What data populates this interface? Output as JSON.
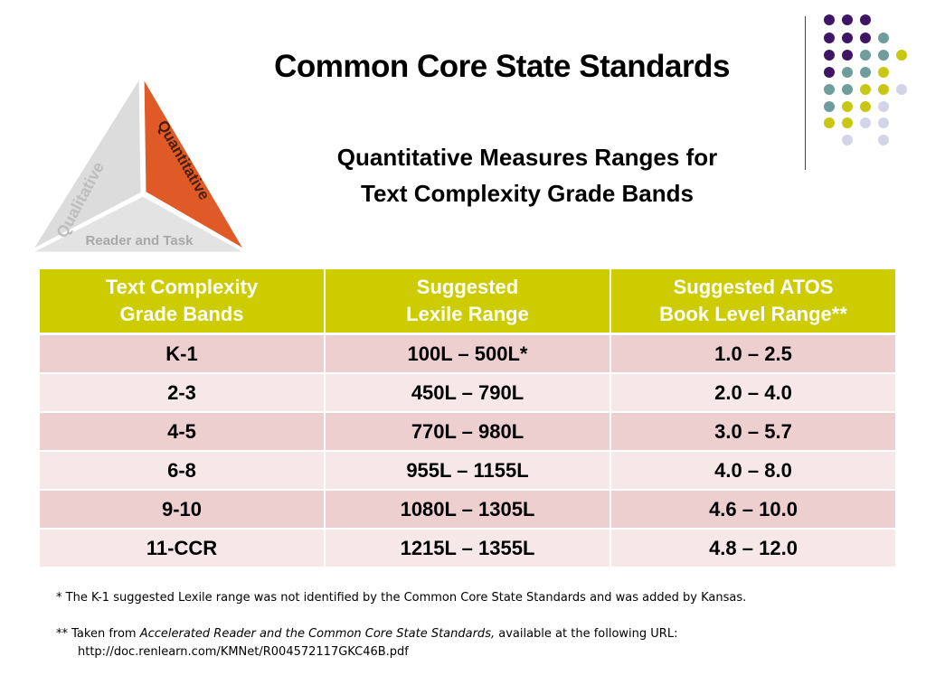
{
  "slide": {
    "title": "Common Core State Standards",
    "subtitle_line1": "Quantitative Measures Ranges for",
    "subtitle_line2": "Text Complexity Grade Bands"
  },
  "triangle_logo": {
    "left_label": "Qualitative",
    "right_label": "Quantitative",
    "bottom_label": "Reader and Task",
    "colors": {
      "left": "#dcdcdc",
      "right": "#e05a28",
      "bottom": "#e3e3e3",
      "left_text": "#bdbdbd",
      "right_text": "#4a1f0e",
      "bottom_text": "#a8a8a8"
    }
  },
  "decor_colors": {
    "purple": "#3f1566",
    "teal": "#6f9c9c",
    "yellow": "#c8c814",
    "lavender": "#d4d4e8"
  },
  "table": {
    "header_color": "#cccc00",
    "headers": [
      [
        "Text Complexity",
        "Grade Bands"
      ],
      [
        "Suggested",
        "Lexile Range"
      ],
      [
        "Suggested ATOS",
        "Book Level Range**"
      ]
    ],
    "rows": [
      [
        "K-1",
        "100L – 500L*",
        "1.0 – 2.5"
      ],
      [
        "2-3",
        "450L – 790L",
        "2.0 – 4.0"
      ],
      [
        "4-5",
        "770L – 980L",
        "3.0 – 5.7"
      ],
      [
        "6-8",
        "955L – 1155L",
        "4.0 – 8.0"
      ],
      [
        "9-10",
        "1080L – 1305L",
        "4.6 – 10.0"
      ],
      [
        "11-CCR",
        "1215L – 1355L",
        "4.8 – 12.0"
      ]
    ]
  },
  "footnotes": {
    "note1": "* The K-1 suggested Lexile range was not identified by the Common Core State Standards and was added by Kansas.",
    "note2_prefix": "** Taken from ",
    "note2_italic": "Accelerated Reader and the Common Core State Standards,",
    "note2_suffix": " available at the following URL:",
    "note2_url": "http://doc.renlearn.com/KMNet/R004572117GKC46B.pdf"
  }
}
